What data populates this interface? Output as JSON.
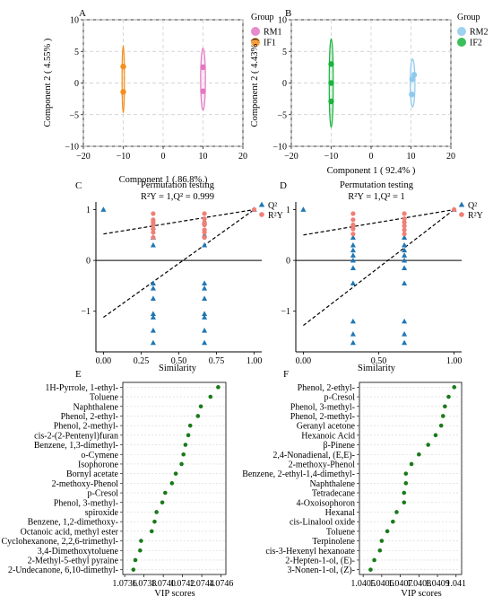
{
  "colors": {
    "RM1": "#e377c2",
    "IF1": "#f28e1c",
    "RM2": "#8ec9ee",
    "IF2": "#1ab33e",
    "Q2": "#1f77b4",
    "R2Y": "#f07f75",
    "vip_dot": "#1a7a1a",
    "grid": "#c8c8c8"
  },
  "chart_data": [
    {
      "panel": "A",
      "type": "scatter",
      "xlabel": "Component 1 ( 86.8% )",
      "ylabel": "Component 2 ( 4.55% )",
      "xlim": [
        -20,
        20
      ],
      "ylim": [
        -10,
        10
      ],
      "xticks": [
        "−20",
        "−10",
        "0",
        "10",
        "20"
      ],
      "yticks": [
        "10",
        "5",
        "0",
        "−5",
        "−10"
      ],
      "legend_title": "Group",
      "legend": [
        "RM1",
        "IF1"
      ],
      "grid": true,
      "series": [
        {
          "name": "RM1",
          "x": [
            10,
            10
          ],
          "y": [
            2.5,
            -1.3
          ],
          "ellipse": {
            "cx": 10,
            "cy": 0.6,
            "rx": 0.6,
            "ry": 4.9
          }
        },
        {
          "name": "IF1",
          "x": [
            -10,
            -10
          ],
          "y": [
            2.6,
            -1.4
          ],
          "ellipse": {
            "cx": -10,
            "cy": 0.6,
            "rx": 0.3,
            "ry": 5.3
          }
        }
      ]
    },
    {
      "panel": "B",
      "type": "scatter",
      "xlabel": "Component 1 ( 92.4% )",
      "ylabel": "Component 2 ( 4.43% )",
      "xlim": [
        -20,
        20
      ],
      "ylim": [
        -10,
        10
      ],
      "xticks": [
        "−20",
        "−10",
        "0",
        "10",
        "20"
      ],
      "yticks": [
        "10",
        "5",
        "0",
        "−5",
        "−10"
      ],
      "legend_title": "Group",
      "legend": [
        "RM2",
        "IF2"
      ],
      "grid": true,
      "series": [
        {
          "name": "RM2",
          "x": [
            10.3,
            10.8,
            10.2
          ],
          "y": [
            0.6,
            1.3,
            -1.8
          ],
          "ellipse": {
            "cx": 10.4,
            "cy": 0,
            "rx": 0.6,
            "ry": 3.8
          }
        },
        {
          "name": "IF2",
          "x": [
            -10,
            -10,
            -10
          ],
          "y": [
            3.0,
            0,
            -2.9
          ],
          "ellipse": {
            "cx": -10,
            "cy": 0,
            "rx": 0.5,
            "ry": 7.0
          }
        }
      ]
    },
    {
      "panel": "C",
      "type": "scatter",
      "title": "Permutation testing",
      "subtitle": "R²Y = 1,Q² = 0.999",
      "xlabel": "Similarity",
      "xlim": [
        -0.05,
        1.05
      ],
      "ylim": [
        -1.8,
        1.15
      ],
      "xticks": [
        "0.00",
        "0.25",
        "0.50",
        "0.75",
        "1.00"
      ],
      "yticks": [
        "1",
        "0",
        "−1"
      ],
      "legend": [
        "Q²",
        "R²Y"
      ],
      "series": [
        {
          "name": "Q²",
          "x": [
            0,
            0.33,
            0.33,
            0.33,
            0.33,
            0.33,
            0.33,
            0.33,
            0.33,
            0.33,
            0.33,
            0.67,
            0.67,
            0.67,
            0.67,
            0.67,
            0.67,
            0.67,
            0.67,
            0.67,
            0.67,
            1.0
          ],
          "y": [
            1.0,
            0.65,
            0.45,
            0.3,
            -0.45,
            -0.55,
            -0.75,
            -1.05,
            -1.12,
            -1.38,
            -1.62,
            0.75,
            0.5,
            0.3,
            -0.45,
            -0.55,
            -0.75,
            -1.05,
            -1.12,
            -1.38,
            -1.62,
            1.0
          ]
        },
        {
          "name": "R²Y",
          "x": [
            0.33,
            0.33,
            0.33,
            0.33,
            0.33,
            0.33,
            0.33,
            0.67,
            0.67,
            0.67,
            0.67,
            0.67,
            0.67,
            0.67,
            1.0
          ],
          "y": [
            0.92,
            0.8,
            0.75,
            0.7,
            0.62,
            0.55,
            0.45,
            0.92,
            0.82,
            0.75,
            0.7,
            0.6,
            0.55,
            0.45,
            1.0
          ]
        }
      ],
      "regression": [
        {
          "name": "R²Y",
          "x": [
            0,
            1
          ],
          "y": [
            0.52,
            1.0
          ]
        },
        {
          "name": "Q²",
          "x": [
            0,
            1
          ],
          "y": [
            -1.12,
            1.0
          ]
        }
      ]
    },
    {
      "panel": "D",
      "type": "scatter",
      "title": "Permutation testing",
      "subtitle": "R²Y = 1,Q² = 1",
      "xlabel": "Similarity",
      "xlim": [
        -0.05,
        1.05
      ],
      "ylim": [
        -1.8,
        1.15
      ],
      "xticks": [
        "0.00",
        "0.50",
        "1.00"
      ],
      "yticks": [
        "1",
        "0",
        "−1"
      ],
      "legend": [
        "Q²",
        "R²Y"
      ],
      "series": [
        {
          "name": "Q²",
          "x": [
            0,
            0.33,
            0.33,
            0.33,
            0.33,
            0.33,
            0.33,
            0.33,
            0.33,
            0.33,
            0.33,
            0.67,
            0.67,
            0.67,
            0.67,
            0.67,
            0.67,
            0.67,
            0.67,
            0.67,
            0.67,
            1.0
          ],
          "y": [
            1.0,
            0.45,
            0.1,
            0.0,
            -0.15,
            -0.45,
            -1.2,
            -1.45,
            -1.62,
            0.3,
            0.2,
            0.45,
            0.1,
            0.0,
            -0.15,
            -0.45,
            -1.2,
            -1.45,
            -1.62,
            0.3,
            0.2,
            1.0
          ]
        },
        {
          "name": "R²Y",
          "x": [
            0.33,
            0.33,
            0.33,
            0.33,
            0.33,
            0.33,
            0.67,
            0.67,
            0.67,
            0.67,
            0.67,
            0.67,
            1.0
          ],
          "y": [
            0.92,
            0.8,
            0.7,
            0.68,
            0.62,
            0.52,
            0.92,
            0.82,
            0.75,
            0.68,
            0.6,
            0.52,
            1.0
          ]
        }
      ],
      "regression": [
        {
          "name": "R²Y",
          "x": [
            0,
            1
          ],
          "y": [
            0.5,
            1.0
          ]
        },
        {
          "name": "Q²",
          "x": [
            0,
            1
          ],
          "y": [
            -1.28,
            1.0
          ]
        }
      ]
    },
    {
      "panel": "E",
      "type": "scatter",
      "xlabel": "VIP scores",
      "xlim": [
        1.07358,
        1.07465
      ],
      "xticks": [
        "1.0736",
        "1.0738",
        "1.0740",
        "1.0742",
        "1.0744",
        "1.0746"
      ],
      "categories": [
        "1H-Pyrrole, 1-ethyl-",
        "Toluene",
        "Naphthalene",
        "Phenol, 2-ethyl-",
        "Phenol, 2-methyl-",
        "cis-2-(2-Pentenyl)furan",
        "Benzene, 1,3-dimethyl-",
        "o-Cymene",
        "Isophorone",
        "Bornyl acetate",
        "2-methoxy-Phenol",
        "p-Cresol",
        "Phenol, 3-methyl-",
        "spiroxide",
        "Benzene, 1,2-dimethoxy-",
        "Octanoic acid, methyl ester",
        "Cyclohexanone, 2,2,6-trimethyl-",
        "3,4-Dimethoxytoluene",
        "2-Methyl-5-ethyl pyraine",
        "2-Undecanone, 6,10-dimethyl-"
      ],
      "values": [
        1.07457,
        1.07449,
        1.07439,
        1.07436,
        1.07428,
        1.07426,
        1.07423,
        1.07421,
        1.07419,
        1.07413,
        1.07409,
        1.07402,
        1.07399,
        1.07393,
        1.07391,
        1.07388,
        1.07377,
        1.07376,
        1.07371,
        1.07369
      ]
    },
    {
      "panel": "F",
      "type": "scatter",
      "xlabel": "VIP scores",
      "xlim": [
        1.04048,
        1.04103
      ],
      "xticks": [
        "1.0405",
        "1.0406",
        "1.0407",
        "1.0408",
        "1.0409",
        "1.041"
      ],
      "categories": [
        "Phenol, 2-ethyl-",
        "p-Cresol",
        "Phenol, 3-methyl-",
        "Phenol, 2-methyl-",
        "Geranyl acetone",
        "Hexanoic Acid",
        "β-Pinene",
        "2,4-Nonadienal, (E,E)-",
        "2-methoxy-Phenol",
        "Benzene, 2-ethyl-1,4-dimethyl-",
        "Naphthalene",
        "Tetradecane",
        "4-Oxoisophoron",
        "Hexanal",
        "cis-Linalool oxide",
        "Toluene",
        "Terpinolene",
        "cis-3-Hexenyl hexanoate",
        "2-Hepten-1-ol, (E)-",
        "3-Nonen-1-ol, (Z)-"
      ],
      "values": [
        1.04099,
        1.04096,
        1.04094,
        1.04093,
        1.04092,
        1.04089,
        1.04085,
        1.0408,
        1.04076,
        1.04073,
        1.04073,
        1.04072,
        1.04072,
        1.04068,
        1.04066,
        1.04063,
        1.0406,
        1.04059,
        1.04056,
        1.04054
      ]
    }
  ]
}
